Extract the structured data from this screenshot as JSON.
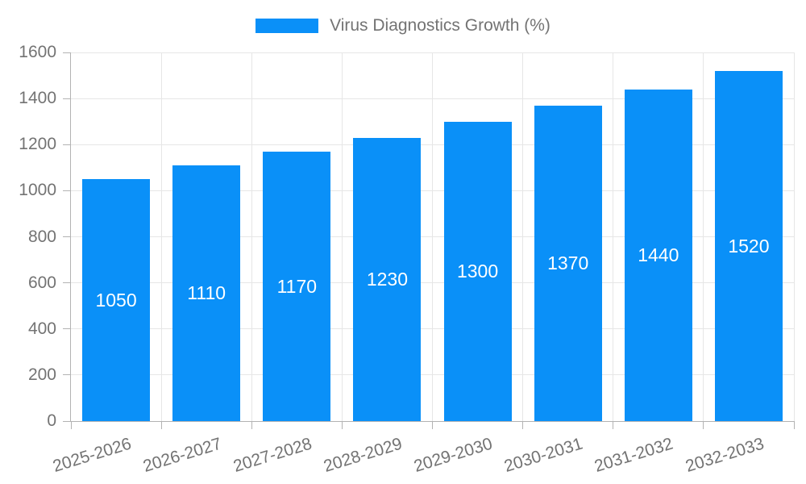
{
  "chart_data": {
    "type": "bar",
    "title": "",
    "categories": [
      "2025-2026",
      "2026-2027",
      "2027-2028",
      "2028-2029",
      "2029-2030",
      "2030-2031",
      "2031-2032",
      "2032-2033"
    ],
    "series": [
      {
        "name": "Virus Diagnostics Growth (%)",
        "values": [
          1050,
          1110,
          1170,
          1230,
          1300,
          1370,
          1440,
          1520
        ]
      }
    ],
    "ylim": [
      0,
      1600
    ],
    "ytick_step": 200,
    "grid": true,
    "legend_position": "top",
    "value_labels": "inside-center"
  },
  "colors": {
    "bar": "#0a90f8",
    "grid": "#e6e6e6",
    "axis": "#b3b3b3",
    "tick_text": "#737373",
    "value_label_text": "#ffffff",
    "background": "#ffffff"
  }
}
